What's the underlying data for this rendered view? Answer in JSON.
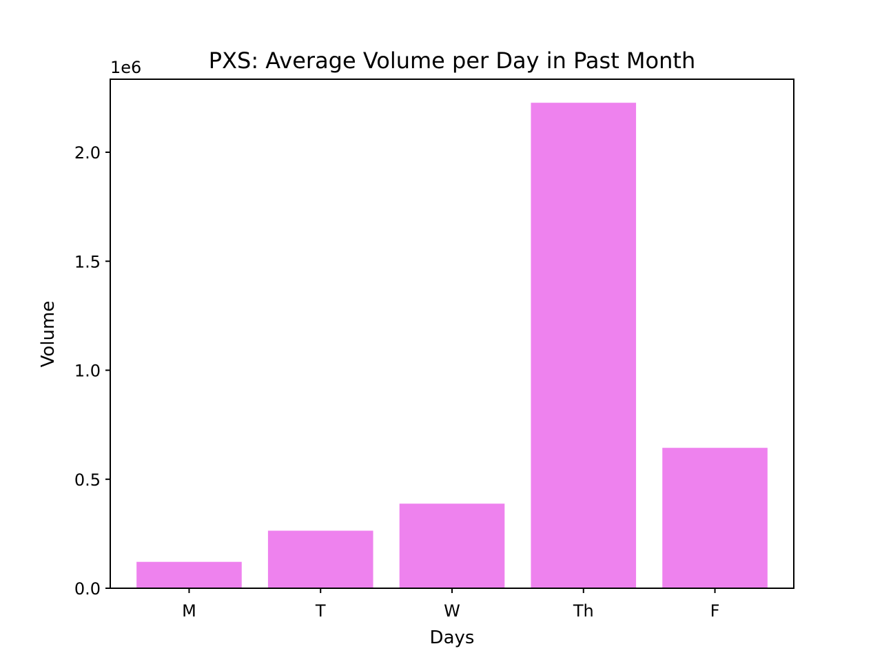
{
  "chart_data": {
    "type": "bar",
    "title": "PXS: Average Volume per Day in Past Month",
    "xlabel": "Days",
    "ylabel": "Volume",
    "y_offset_label": "1e6",
    "categories": [
      "M",
      "T",
      "W",
      "Th",
      "F"
    ],
    "values": [
      121000,
      264000,
      388000,
      2227000,
      644000
    ],
    "ylim": [
      0,
      2335000
    ],
    "yticks": [
      0,
      500000,
      1000000,
      1500000,
      2000000
    ],
    "ytick_labels": [
      "0.0",
      "0.5",
      "1.0",
      "1.5",
      "2.0"
    ],
    "grid": false,
    "legend": false,
    "bar_color": "#ee82ee"
  }
}
